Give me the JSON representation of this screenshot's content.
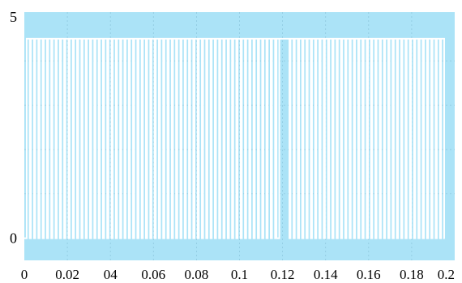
{
  "chart_data": {
    "type": "line",
    "title": "",
    "xlabel": "",
    "ylabel": "",
    "x_tick_labels": [
      "0",
      "0.02",
      "04",
      "0.06",
      "0.08",
      "0.1",
      "0.12",
      "0.14",
      "0.16",
      "0.18",
      "0.2"
    ],
    "y_tick_labels": [
      "0",
      "5"
    ],
    "xlim": [
      0,
      0.2
    ],
    "ylim": [
      -0.5,
      5.1
    ],
    "grid": true,
    "series": [
      {
        "signal": "square pulse train switching between 0 and 4.5",
        "low": 0,
        "high": 4.5,
        "pulse_count_before_gap": 59,
        "pulse_count_after_gap": 36,
        "pulse_period": 0.002,
        "gap_start": 0.1172,
        "gap_end": 0.1232
      }
    ]
  },
  "colors": {
    "plot_background": "#abe3f7",
    "signal": "#ffffff",
    "grid": "#8fc9df",
    "axis_text": "#000000"
  }
}
